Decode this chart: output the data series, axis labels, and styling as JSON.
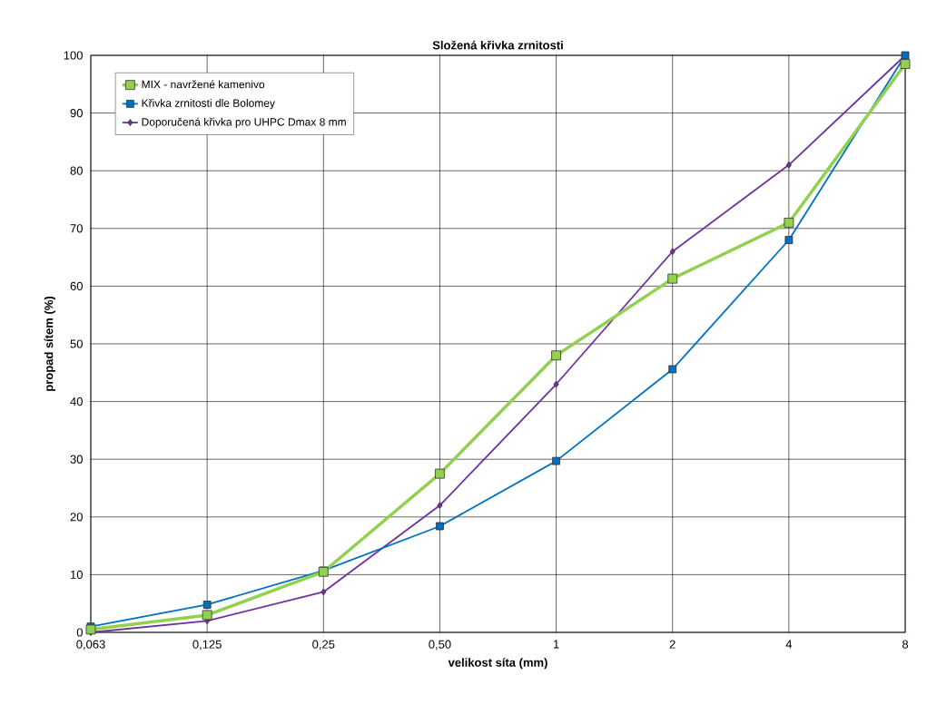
{
  "chart_data": {
    "type": "line",
    "title": "Složená křivka zrnitosti",
    "xlabel": "velikost síta (mm)",
    "ylabel": "propad sítem (%)",
    "categories": [
      "0,063",
      "0,125",
      "0,25",
      "0,50",
      "1",
      "2",
      "4",
      "8"
    ],
    "series": [
      {
        "name": "MIX - navržené kamenivo",
        "color": "#92d050",
        "marker": "square",
        "values": [
          0.5,
          3,
          10.5,
          27.5,
          48,
          61.3,
          71,
          98.5
        ]
      },
      {
        "name": "Křivka zrnitosti dle Bolomey",
        "color": "#0070c0",
        "marker": "square",
        "values": [
          1,
          4.8,
          10.7,
          18.4,
          29.7,
          45.6,
          68,
          100
        ]
      },
      {
        "name": "Doporučená křivka pro UHPC Dmax 8 mm",
        "color": "#7030a0",
        "marker": "diamond",
        "values": [
          0,
          2,
          7,
          22,
          43,
          66,
          81,
          100
        ]
      }
    ],
    "ylim": [
      0,
      100
    ],
    "yticks": [
      0,
      10,
      20,
      30,
      40,
      50,
      60,
      70,
      80,
      90,
      100
    ],
    "grid": true,
    "legend": "top left",
    "line_style": "solid"
  }
}
